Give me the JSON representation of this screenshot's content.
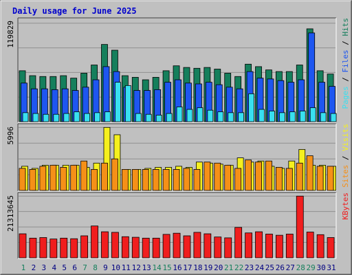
{
  "chart_data": [
    {
      "type": "bar",
      "title": "Daily usage for June 2025",
      "categories": [
        "1",
        "2",
        "3",
        "4",
        "5",
        "6",
        "7",
        "8",
        "9",
        "10",
        "11",
        "12",
        "13",
        "14",
        "15",
        "16",
        "17",
        "18",
        "19",
        "20",
        "21",
        "22",
        "23",
        "24",
        "25",
        "26",
        "27",
        "28",
        "29",
        "30",
        "31"
      ],
      "ymax": 119829,
      "ymax_label": "119829",
      "legend": [
        "Pages",
        "Files",
        "Hits"
      ],
      "legend_separator": " / ",
      "series": [
        {
          "name": "Hits",
          "color": "#157f5c",
          "values": [
            62000,
            56000,
            55000,
            55000,
            56000,
            53000,
            59000,
            69000,
            94000,
            87000,
            56000,
            54000,
            51000,
            54000,
            62000,
            68000,
            66000,
            65000,
            66000,
            64000,
            59000,
            55000,
            70000,
            67000,
            63000,
            61000,
            61000,
            69000,
            113000,
            62000,
            58000
          ]
        },
        {
          "name": "Files",
          "color": "#1e56f0",
          "values": [
            47000,
            40000,
            40000,
            39000,
            40000,
            38000,
            42000,
            51000,
            67000,
            61000,
            42000,
            38000,
            38000,
            39000,
            48000,
            51000,
            47000,
            46000,
            48000,
            45000,
            42000,
            40000,
            61000,
            53000,
            52000,
            50000,
            48000,
            51000,
            108000,
            48000,
            43000
          ]
        },
        {
          "name": "Pages",
          "color": "#39e0f0",
          "values": [
            11000,
            10000,
            9000,
            9000,
            10000,
            12000,
            10000,
            11000,
            12000,
            48000,
            44000,
            10000,
            9000,
            8000,
            10000,
            18000,
            15000,
            17000,
            14000,
            12000,
            11000,
            11000,
            34000,
            15000,
            13000,
            11000,
            12000,
            13000,
            17000,
            11000,
            10000
          ]
        }
      ]
    },
    {
      "type": "bar",
      "categories": [
        "1",
        "2",
        "3",
        "4",
        "5",
        "6",
        "7",
        "8",
        "9",
        "10",
        "11",
        "12",
        "13",
        "14",
        "15",
        "16",
        "17",
        "18",
        "19",
        "20",
        "21",
        "22",
        "23",
        "24",
        "25",
        "26",
        "27",
        "28",
        "29",
        "30",
        "31"
      ],
      "ymax": 5996,
      "ymax_label": "5996",
      "legend": [
        "Sites",
        "Visits"
      ],
      "legend_separator": " / ",
      "series": [
        {
          "name": "Visits",
          "color": "#f5f01e",
          "values": [
            2300,
            2100,
            2400,
            2400,
            2400,
            2400,
            2200,
            2600,
            5996,
            5300,
            2000,
            2000,
            2100,
            2200,
            2200,
            2300,
            2200,
            2700,
            2600,
            2500,
            2400,
            3100,
            2700,
            2800,
            2300,
            2100,
            2800,
            3900,
            2400,
            2400,
            2300
          ]
        },
        {
          "name": "Sites",
          "color": "#f59018",
          "values": [
            2100,
            2000,
            2300,
            2400,
            2200,
            2400,
            2800,
            2000,
            2600,
            3000,
            2000,
            2000,
            2000,
            2000,
            2000,
            2000,
            2100,
            2000,
            2700,
            2600,
            2400,
            2100,
            2900,
            2700,
            2800,
            2200,
            2100,
            2600,
            3300,
            2300,
            2300
          ]
        }
      ]
    },
    {
      "type": "bar",
      "categories": [
        "1",
        "2",
        "3",
        "4",
        "5",
        "6",
        "7",
        "8",
        "9",
        "10",
        "11",
        "12",
        "13",
        "14",
        "15",
        "16",
        "17",
        "18",
        "19",
        "20",
        "21",
        "22",
        "23",
        "24",
        "25",
        "26",
        "27",
        "28",
        "29",
        "30",
        "31"
      ],
      "ymax": 21313645,
      "ymax_label": "21313645",
      "legend": [
        "KBytes"
      ],
      "legend_separator": "",
      "series": [
        {
          "name": "KBytes",
          "color": "#f01e1e",
          "values": [
            8300000,
            6800000,
            7000000,
            6500000,
            6800000,
            6600000,
            7600000,
            11000000,
            9000000,
            8800000,
            7300000,
            7100000,
            6800000,
            6800000,
            8100000,
            8500000,
            7600000,
            8800000,
            8300000,
            7200000,
            6900000,
            10500000,
            8600000,
            9000000,
            8200000,
            7800000,
            8200000,
            21313645,
            8900000,
            8000000,
            7000000
          ]
        }
      ]
    }
  ],
  "colors": {
    "title": "#0000cc",
    "panel_bg": "#c0c0c0",
    "gridline": "#909090",
    "weekend_label": "#157f5c",
    "weekday_label": "#000080"
  },
  "weekend_days": [
    "1",
    "7",
    "8",
    "14",
    "15",
    "21",
    "22",
    "28",
    "29"
  ]
}
